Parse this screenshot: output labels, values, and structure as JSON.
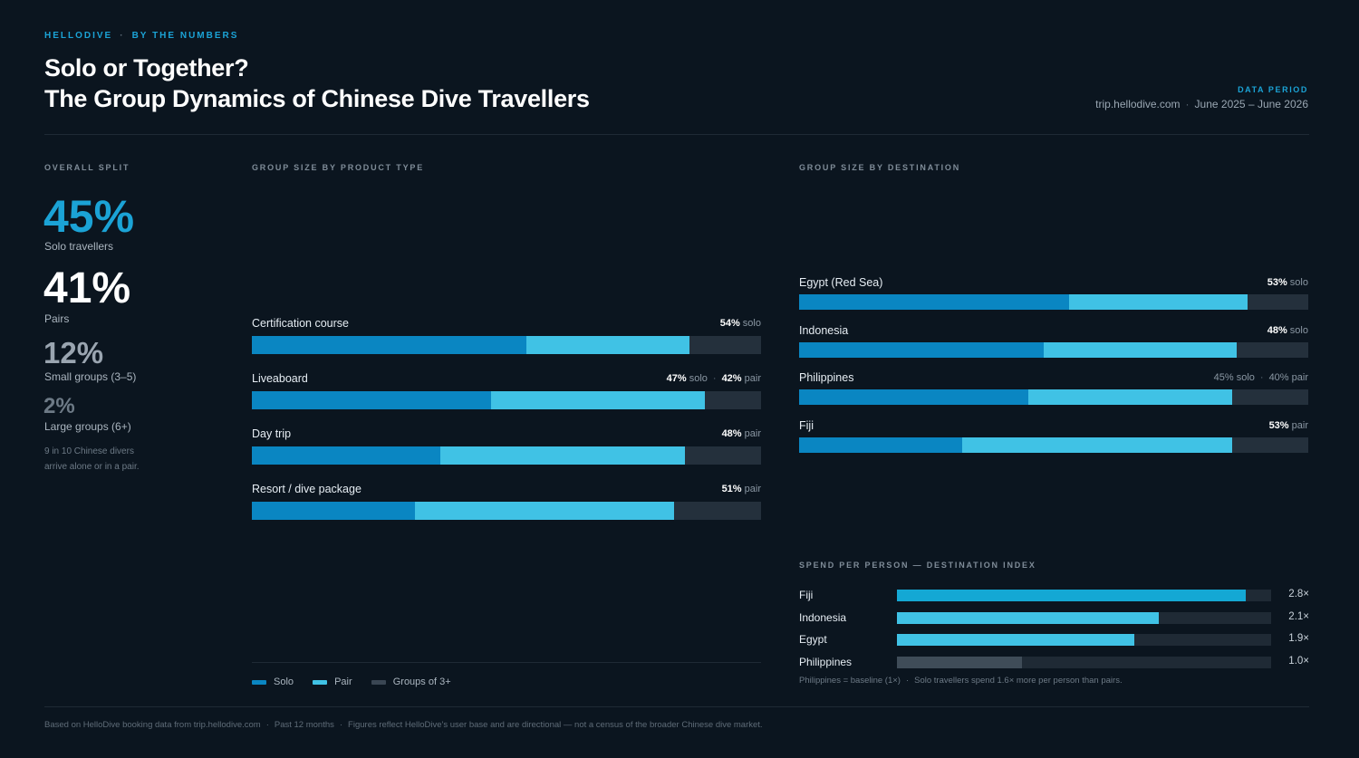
{
  "header": {
    "brand": "HELLODIVE",
    "eyebrow_section": "BY THE NUMBERS",
    "title_line1": "Solo or Together?",
    "title_line2": "The Group Dynamics of Chinese Dive Travellers",
    "period_label": "DATA PERIOD",
    "period_site": "trip.hellodive.com",
    "period_range": "June 2025 – June 2026"
  },
  "overall": {
    "heading": "OVERALL SPLIT",
    "stats": [
      {
        "value": "45%",
        "label": "Solo travellers",
        "color": "#1ba3d6"
      },
      {
        "value": "41%",
        "label": "Pairs",
        "color": "#ffffff"
      },
      {
        "value": "12%",
        "label": "Small groups (3–5)",
        "color": "#9aa5b0"
      },
      {
        "value": "2%",
        "label": "Large groups (6+)",
        "color": "#6d7a86"
      }
    ],
    "note_line1": "9 in 10 Chinese divers",
    "note_line2": "arrive alone or in a pair."
  },
  "chart_data": [
    {
      "type": "bar",
      "title": "GROUP SIZE BY PRODUCT TYPE",
      "orientation": "horizontal",
      "stacked": true,
      "categories": [
        "Certification course",
        "Liveaboard",
        "Day trip",
        "Resort / dive package"
      ],
      "series": [
        {
          "name": "Solo",
          "values": [
            54,
            47,
            37,
            32
          ]
        },
        {
          "name": "Pair",
          "values": [
            32,
            42,
            48,
            51
          ]
        },
        {
          "name": "Groups of 3+",
          "values": [
            14,
            11,
            15,
            17
          ]
        }
      ],
      "annotations": [
        [
          {
            "value": "54%",
            "suffix": "solo"
          }
        ],
        [
          {
            "value": "47%",
            "suffix": "solo"
          },
          {
            "value": "42%",
            "suffix": "pair"
          }
        ],
        [
          {
            "value": "48%",
            "suffix": "pair"
          }
        ],
        [
          {
            "value": "51%",
            "suffix": "pair"
          }
        ]
      ],
      "xlim": [
        0,
        100
      ],
      "legend": "bottom-left"
    },
    {
      "type": "bar",
      "title": "GROUP SIZE BY DESTINATION",
      "orientation": "horizontal",
      "stacked": true,
      "categories": [
        "Egypt (Red Sea)",
        "Indonesia",
        "Philippines",
        "Fiji"
      ],
      "series": [
        {
          "name": "Solo",
          "values": [
            53,
            48,
            45,
            32
          ]
        },
        {
          "name": "Pair",
          "values": [
            35,
            38,
            40,
            53
          ]
        },
        {
          "name": "Groups of 3+",
          "values": [
            12,
            14,
            14,
            15
          ]
        }
      ],
      "annotations": [
        [
          {
            "value": "53%",
            "suffix": "solo",
            "bold": true
          }
        ],
        [
          {
            "value": "48%",
            "suffix": "solo",
            "bold": true
          }
        ],
        [
          {
            "value": "45%",
            "suffix": "solo",
            "bold": false
          },
          {
            "value": "40%",
            "suffix": "pair",
            "bold": false
          }
        ],
        [
          {
            "value": "53%",
            "suffix": "pair",
            "bold": true
          }
        ]
      ],
      "xlim": [
        0,
        100
      ]
    },
    {
      "type": "bar",
      "title": "SPEND PER PERSON — DESTINATION INDEX",
      "orientation": "horizontal",
      "categories": [
        "Fiji",
        "Indonesia",
        "Egypt",
        "Philippines"
      ],
      "values": [
        2.8,
        2.1,
        1.9,
        1.0
      ],
      "value_labels": [
        "2.8×",
        "2.1×",
        "1.9×",
        "1.0×"
      ],
      "colors": [
        "#14a8d4",
        "#40c2e5",
        "#40c2e5",
        "#3f4c58"
      ],
      "xlim": [
        0,
        3.0
      ],
      "note": "Philippines = baseline (1×)",
      "note2": "Solo travellers spend 1.6× more per person than pairs."
    }
  ],
  "legend": [
    {
      "label": "Solo",
      "color": "#0a86c2"
    },
    {
      "label": "Pair",
      "color": "#40c2e5"
    },
    {
      "label": "Groups of 3+",
      "color": "#3a4653"
    }
  ],
  "footer": {
    "part1": "Based on HelloDive booking data from trip.hellodive.com",
    "part2": "Past 12 months",
    "part3": "Figures reflect HelloDive's user base and are directional — not a census of the broader Chinese dive market."
  }
}
